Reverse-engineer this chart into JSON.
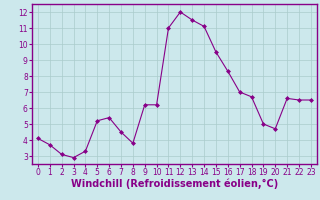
{
  "x": [
    0,
    1,
    2,
    3,
    4,
    5,
    6,
    7,
    8,
    9,
    10,
    11,
    12,
    13,
    14,
    15,
    16,
    17,
    18,
    19,
    20,
    21,
    22,
    23
  ],
  "y": [
    4.1,
    3.7,
    3.1,
    2.9,
    3.3,
    5.2,
    5.4,
    4.5,
    3.8,
    6.2,
    6.2,
    11.0,
    12.0,
    11.5,
    11.1,
    9.5,
    8.3,
    7.0,
    6.7,
    5.0,
    4.7,
    6.6,
    6.5,
    6.5
  ],
  "line_color": "#880088",
  "marker": "D",
  "marker_size": 2.0,
  "bg_color": "#cce8ec",
  "grid_color": "#aacccc",
  "xlabel": "Windchill (Refroidissement éolien,°C)",
  "xlabel_color": "#880088",
  "tick_color": "#880088",
  "xlim": [
    -0.5,
    23.5
  ],
  "ylim": [
    2.5,
    12.5
  ],
  "yticks": [
    3,
    4,
    5,
    6,
    7,
    8,
    9,
    10,
    11,
    12
  ],
  "xticks": [
    0,
    1,
    2,
    3,
    4,
    5,
    6,
    7,
    8,
    9,
    10,
    11,
    12,
    13,
    14,
    15,
    16,
    17,
    18,
    19,
    20,
    21,
    22,
    23
  ],
  "tick_labelsize": 5.5,
  "xlabel_fontsize": 7.0,
  "xlabel_fontweight": "bold",
  "spine_color": "#880088"
}
